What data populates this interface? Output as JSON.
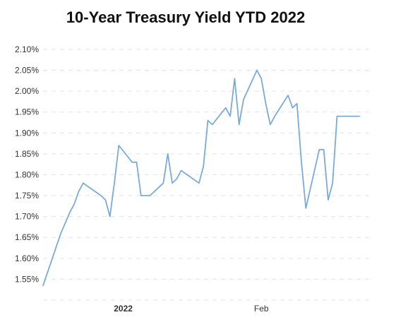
{
  "chart_data": {
    "type": "line",
    "title": "10-Year Treasury Yield YTD 2022",
    "xlabel": "",
    "ylabel": "",
    "ylim": [
      1.5,
      2.1
    ],
    "y_ticks": [
      "1.55%",
      "1.60%",
      "1.65%",
      "1.70%",
      "1.75%",
      "1.80%",
      "1.85%",
      "1.90%",
      "1.95%",
      "2.00%",
      "2.05%",
      "2.10%"
    ],
    "y_tick_values": [
      1.55,
      1.6,
      1.65,
      1.7,
      1.75,
      1.8,
      1.85,
      1.9,
      1.95,
      2.0,
      2.05,
      2.1
    ],
    "x_ticks": [
      {
        "label": "2022",
        "x": "2022-01-01",
        "bold": true
      },
      {
        "label": "Feb",
        "x": "2022-02-01",
        "bold": false
      }
    ],
    "xlim": [
      "2021-12-14",
      "2022-02-26"
    ],
    "grid": true,
    "series": [
      {
        "name": "",
        "color": "#7aabd8",
        "x": [
          "2021-12-14",
          "2021-12-18",
          "2021-12-20",
          "2021-12-21",
          "2021-12-22",
          "2021-12-23",
          "2021-12-27",
          "2021-12-28",
          "2021-12-29",
          "2021-12-30",
          "2021-12-31",
          "2022-01-03",
          "2022-01-04",
          "2022-01-05",
          "2022-01-06",
          "2022-01-07",
          "2022-01-10",
          "2022-01-11",
          "2022-01-12",
          "2022-01-13",
          "2022-01-14",
          "2022-01-18",
          "2022-01-19",
          "2022-01-20",
          "2022-01-21",
          "2022-01-24",
          "2022-01-25",
          "2022-01-26",
          "2022-01-27",
          "2022-01-28",
          "2022-01-31",
          "2022-02-01",
          "2022-02-02",
          "2022-02-03",
          "2022-02-04",
          "2022-02-07",
          "2022-02-08",
          "2022-02-09",
          "2022-02-10",
          "2022-02-11",
          "2022-02-14",
          "2022-02-15",
          "2022-02-16",
          "2022-02-17",
          "2022-02-18",
          "2022-02-22",
          "2022-02-23"
        ],
        "values": [
          1.535,
          1.66,
          1.71,
          1.73,
          1.76,
          1.78,
          1.75,
          1.74,
          1.7,
          1.78,
          1.87,
          1.83,
          1.83,
          1.75,
          1.75,
          1.75,
          1.78,
          1.85,
          1.78,
          1.79,
          1.81,
          1.78,
          1.82,
          1.93,
          1.92,
          1.96,
          1.94,
          2.03,
          1.92,
          1.98,
          2.05,
          2.03,
          1.97,
          1.92,
          1.94,
          1.99,
          1.96,
          1.97,
          1.83,
          1.72,
          1.86,
          1.86,
          1.74,
          1.78,
          1.94,
          1.94,
          1.94
        ]
      }
    ]
  }
}
